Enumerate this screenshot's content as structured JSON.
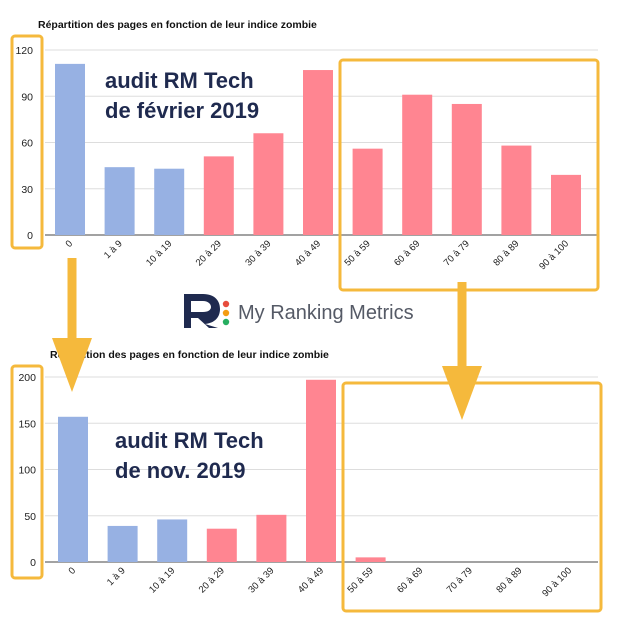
{
  "colors": {
    "blue_bar": "#97b1e3",
    "red_bar": "#ff8591",
    "highlight": "#f5b93c",
    "overlay_text": "#1f2a4f",
    "logo_dark": "#1f2a4f",
    "logo_text": "#555a66"
  },
  "overlay": {
    "top_line1": "audit RM Tech",
    "top_line2": "de février 2019",
    "bottom_line1": "audit RM Tech",
    "bottom_line2": "de nov. 2019"
  },
  "logo": {
    "text": "My Ranking Metrics",
    "icon": "my-ranking-metrics-logo"
  },
  "chart_data": [
    {
      "type": "bar",
      "title": "Répartition des pages en fonction de leur indice zombie",
      "categories": [
        "0",
        "1 à 9",
        "10 à 19",
        "20 à 29",
        "30 à 39",
        "40 à 49",
        "50 à 59",
        "60 à 69",
        "70 à 79",
        "80 à 89",
        "90 à 100"
      ],
      "values": [
        111,
        44,
        43,
        51,
        66,
        107,
        56,
        91,
        85,
        58,
        39
      ],
      "bar_colors": [
        "blue",
        "blue",
        "blue",
        "red",
        "red",
        "red",
        "red",
        "red",
        "red",
        "red",
        "red"
      ],
      "ylim": [
        0,
        120
      ],
      "yticks": [
        "0",
        "30",
        "60",
        "90",
        "120"
      ],
      "grid": true
    },
    {
      "type": "bar",
      "title": "Répartition des pages en fonction de leur indice zombie",
      "categories": [
        "0",
        "1 à 9",
        "10 à 19",
        "20 à 29",
        "30 à 39",
        "40 à 49",
        "50 à 59",
        "60 à 69",
        "70 à 79",
        "80 à 89",
        "90 à 100"
      ],
      "values": [
        157,
        39,
        46,
        36,
        51,
        197,
        5,
        0,
        0,
        0,
        0
      ],
      "bar_colors": [
        "blue",
        "blue",
        "blue",
        "red",
        "red",
        "red",
        "red",
        "red",
        "red",
        "red",
        "red"
      ],
      "ylim": [
        0,
        200
      ],
      "yticks": [
        "0",
        "50",
        "100",
        "150",
        "200"
      ],
      "grid": true
    }
  ]
}
